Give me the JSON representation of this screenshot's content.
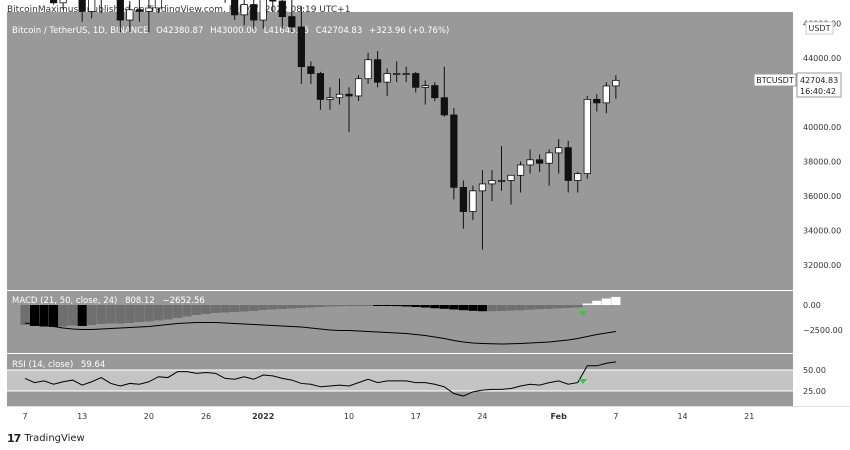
{
  "header": {
    "text": "BitcoinMaximus1 published on TradingView.com, Feb 07, 2022 08:19 UTC+1"
  },
  "footer": {
    "logo": "17",
    "brand": "TradingView"
  },
  "legend": {
    "symbol": "Bitcoin / TetherUS, 1D, BINANCE",
    "o_label": "O",
    "o_value": "42380.87",
    "h_label": "H",
    "h_value": "43000.00",
    "l_label": "L",
    "l_value": "41645.85",
    "c_label": "C",
    "c_value": "42704.83",
    "change": "+323.96 (+0.76%)"
  },
  "price_axis": {
    "currency": "USDT",
    "ticks": [
      "46000.00",
      "44000.00",
      "42000.00",
      "40000.00",
      "38000.00",
      "36000.00",
      "34000.00",
      "32000.00"
    ],
    "last_label": "BTCUSDT",
    "last_price": "42704.83",
    "countdown": "16:40:42"
  },
  "macd": {
    "label": "MACD (21, 50, close, 24)",
    "value1": "808.12",
    "value2": "−2652.56",
    "ticks": [
      "0.00",
      "−2500.00"
    ]
  },
  "rsi": {
    "label": "RSI (14, close)",
    "value": "59.64",
    "ticks": [
      "50.00",
      "25.00"
    ]
  },
  "x_axis": {
    "labels": [
      "7",
      "13",
      "20",
      "26",
      "2022",
      "10",
      "17",
      "24",
      "Feb",
      "7",
      "14",
      "21"
    ]
  },
  "colors": {
    "pane_bg": "#999999",
    "candle_up": "#ffffff",
    "candle_down": "#111111",
    "macd_line": "#000000",
    "rsi_band": "#c4c4c4",
    "arrow_green": "#2ecc40",
    "axis_text": "#333333"
  },
  "chart_data": [
    {
      "type": "candlestick",
      "title": "Bitcoin / TetherUS, 1D, BINANCE",
      "xlabel": "",
      "ylabel": "",
      "ylim": [
        31000,
        46600
      ],
      "x": [
        "2021-12-07",
        "2021-12-08",
        "2021-12-09",
        "2021-12-10",
        "2021-12-11",
        "2021-12-12",
        "2021-12-13",
        "2021-12-14",
        "2021-12-15",
        "2021-12-16",
        "2021-12-17",
        "2021-12-18",
        "2021-12-19",
        "2021-12-20",
        "2021-12-21",
        "2021-12-22",
        "2021-12-23",
        "2021-12-24",
        "2021-12-25",
        "2021-12-26",
        "2021-12-27",
        "2021-12-28",
        "2021-12-29",
        "2021-12-30",
        "2021-12-31",
        "2022-01-01",
        "2022-01-02",
        "2022-01-03",
        "2022-01-04",
        "2022-01-05",
        "2022-01-06",
        "2022-01-07",
        "2022-01-08",
        "2022-01-09",
        "2022-01-10",
        "2022-01-11",
        "2022-01-12",
        "2022-01-13",
        "2022-01-14",
        "2022-01-15",
        "2022-01-16",
        "2022-01-17",
        "2022-01-18",
        "2022-01-19",
        "2022-01-20",
        "2022-01-21",
        "2022-01-22",
        "2022-01-23",
        "2022-01-24",
        "2022-01-25",
        "2022-01-26",
        "2022-01-27",
        "2022-01-28",
        "2022-01-29",
        "2022-01-30",
        "2022-01-31",
        "2022-02-01",
        "2022-02-02",
        "2022-02-03",
        "2022-02-04",
        "2022-02-05",
        "2022-02-06",
        "2022-02-07"
      ],
      "open": [
        50600,
        50500,
        50600,
        49300,
        47200,
        48400,
        49400,
        46700,
        48400,
        49000,
        47600,
        46200,
        46800,
        46700,
        46900,
        48900,
        48600,
        50800,
        50800,
        50400,
        50700,
        50700,
        47600,
        46500,
        47100,
        46200,
        47700,
        47300,
        46400,
        45800,
        43500,
        43100,
        41600,
        41700,
        41900,
        41800,
        42800,
        43900,
        42600,
        43100,
        43100,
        43100,
        42300,
        42400,
        41700,
        40700,
        36500,
        35100,
        36300,
        36700,
        36900,
        36900,
        37200,
        37800,
        38100,
        37900,
        38500,
        38800,
        36900,
        37300,
        41600,
        41400,
        42380
      ],
      "high": [
        51900,
        51200,
        50900,
        50100,
        49500,
        50300,
        50200,
        49100,
        49500,
        49400,
        48000,
        47300,
        48300,
        47600,
        49300,
        49500,
        51400,
        51900,
        51200,
        51300,
        52100,
        50800,
        48200,
        47900,
        48500,
        47900,
        48100,
        47500,
        47500,
        47000,
        43800,
        43200,
        42300,
        42800,
        42300,
        43000,
        44300,
        44400,
        43400,
        43800,
        43500,
        43200,
        42700,
        42600,
        43500,
        41100,
        36900,
        36600,
        37500,
        37500,
        38900,
        37200,
        38000,
        38700,
        38400,
        38700,
        39300,
        39200,
        37400,
        41800,
        41900,
        42600,
        43000
      ],
      "low": [
        50000,
        50000,
        49000,
        47100,
        46800,
        47800,
        46100,
        46300,
        46600,
        47500,
        45500,
        45500,
        46100,
        45500,
        46600,
        48400,
        48100,
        50400,
        50100,
        49900,
        50400,
        47200,
        46200,
        45900,
        45700,
        45700,
        46700,
        45700,
        45500,
        42500,
        42500,
        41000,
        41000,
        41300,
        39700,
        41500,
        42500,
        42300,
        41800,
        42600,
        42600,
        42000,
        41300,
        41500,
        40600,
        35800,
        34100,
        34600,
        32900,
        35700,
        36300,
        35500,
        36200,
        37300,
        37400,
        36600,
        37300,
        36200,
        36200,
        37000,
        40900,
        40800,
        41645
      ],
      "close": [
        50500,
        50600,
        49300,
        47200,
        48400,
        49400,
        46700,
        48400,
        49000,
        47600,
        46200,
        46800,
        46700,
        46900,
        48900,
        48600,
        50800,
        50800,
        50400,
        50700,
        50700,
        47600,
        46500,
        47100,
        46200,
        47700,
        47300,
        46400,
        45800,
        43500,
        43100,
        41600,
        41700,
        41900,
        41800,
        42800,
        43900,
        42600,
        43100,
        43100,
        43100,
        42300,
        42400,
        41700,
        40700,
        36500,
        35100,
        36300,
        36700,
        36900,
        36900,
        37200,
        37800,
        38100,
        37900,
        38500,
        38800,
        36900,
        37300,
        41600,
        41400,
        42380,
        42704
      ]
    },
    {
      "type": "bar",
      "title": "MACD (21, 50, close, 24)",
      "xlabel": "",
      "ylabel": "",
      "ylim": [
        -4200,
        1600
      ],
      "x": [
        "2021-12-07",
        "2021-12-08",
        "2021-12-09",
        "2021-12-10",
        "2021-12-11",
        "2021-12-12",
        "2021-12-13",
        "2021-12-14",
        "2021-12-15",
        "2021-12-16",
        "2021-12-17",
        "2021-12-18",
        "2021-12-19",
        "2021-12-20",
        "2021-12-21",
        "2021-12-22",
        "2021-12-23",
        "2021-12-24",
        "2021-12-25",
        "2021-12-26",
        "2021-12-27",
        "2021-12-28",
        "2021-12-29",
        "2021-12-30",
        "2021-12-31",
        "2022-01-01",
        "2022-01-02",
        "2022-01-03",
        "2022-01-04",
        "2022-01-05",
        "2022-01-06",
        "2022-01-07",
        "2022-01-08",
        "2022-01-09",
        "2022-01-10",
        "2022-01-11",
        "2022-01-12",
        "2022-01-13",
        "2022-01-14",
        "2022-01-15",
        "2022-01-16",
        "2022-01-17",
        "2022-01-18",
        "2022-01-19",
        "2022-01-20",
        "2022-01-21",
        "2022-01-22",
        "2022-01-23",
        "2022-01-24",
        "2022-01-25",
        "2022-01-26",
        "2022-01-27",
        "2022-01-28",
        "2022-01-29",
        "2022-01-30",
        "2022-01-31",
        "2022-02-01",
        "2022-02-02",
        "2022-02-03",
        "2022-02-04",
        "2022-02-05",
        "2022-02-06",
        "2022-02-07"
      ],
      "series": [
        {
          "values": [
            -2000,
            -2100,
            -2150,
            -2200,
            -2150,
            -2050,
            -2100,
            -2000,
            -1900,
            -1850,
            -1850,
            -1800,
            -1700,
            -1650,
            -1550,
            -1450,
            -1300,
            -1150,
            -1000,
            -900,
            -800,
            -750,
            -700,
            -650,
            -600,
            -500,
            -450,
            -400,
            -350,
            -300,
            -250,
            -200,
            -150,
            -120,
            -100,
            -80,
            -60,
            -70,
            -90,
            -110,
            -150,
            -200,
            -250,
            -320,
            -380,
            -450,
            -520,
            -580,
            -620,
            -620,
            -600,
            -560,
            -520,
            -470,
            -420,
            -380,
            -330,
            -300,
            -240,
            150,
            420,
            650,
            808
          ]
        },
        {
          "values": [
            -1800,
            -1900,
            -2000,
            -2150,
            -2300,
            -2400,
            -2450,
            -2450,
            -2400,
            -2350,
            -2300,
            -2250,
            -2200,
            -2150,
            -2050,
            -1950,
            -1850,
            -1800,
            -1750,
            -1750,
            -1750,
            -1800,
            -1850,
            -1900,
            -1950,
            -2000,
            -2050,
            -2100,
            -2150,
            -2200,
            -2300,
            -2400,
            -2500,
            -2550,
            -2550,
            -2600,
            -2650,
            -2700,
            -2750,
            -2800,
            -2850,
            -2950,
            -3050,
            -3200,
            -3350,
            -3550,
            -3700,
            -3800,
            -3850,
            -3880,
            -3900,
            -3880,
            -3850,
            -3800,
            -3750,
            -3700,
            -3600,
            -3500,
            -3350,
            -3150,
            -2950,
            -2800,
            -2652
          ]
        }
      ]
    },
    {
      "type": "line",
      "title": "RSI (14, close)",
      "xlabel": "",
      "ylabel": "",
      "ylim": [
        15,
        78
      ],
      "x": [
        "2021-12-07",
        "2021-12-08",
        "2021-12-09",
        "2021-12-10",
        "2021-12-11",
        "2021-12-12",
        "2021-12-13",
        "2021-12-14",
        "2021-12-15",
        "2021-12-16",
        "2021-12-17",
        "2021-12-18",
        "2021-12-19",
        "2021-12-20",
        "2021-12-21",
        "2021-12-22",
        "2021-12-23",
        "2021-12-24",
        "2021-12-25",
        "2021-12-26",
        "2021-12-27",
        "2021-12-28",
        "2021-12-29",
        "2021-12-30",
        "2021-12-31",
        "2022-01-01",
        "2022-01-02",
        "2022-01-03",
        "2022-01-04",
        "2022-01-05",
        "2022-01-06",
        "2022-01-07",
        "2022-01-08",
        "2022-01-09",
        "2022-01-10",
        "2022-01-11",
        "2022-01-12",
        "2022-01-13",
        "2022-01-14",
        "2022-01-15",
        "2022-01-16",
        "2022-01-17",
        "2022-01-18",
        "2022-01-19",
        "2022-01-20",
        "2022-01-21",
        "2022-01-22",
        "2022-01-23",
        "2022-01-24",
        "2022-01-25",
        "2022-01-26",
        "2022-01-27",
        "2022-01-28",
        "2022-01-29",
        "2022-01-30",
        "2022-01-31",
        "2022-02-01",
        "2022-02-02",
        "2022-02-03",
        "2022-02-04",
        "2022-02-05",
        "2022-02-06",
        "2022-02-07"
      ],
      "series": [
        {
          "values": [
            40,
            35,
            37,
            33,
            36,
            38,
            32,
            36,
            41,
            34,
            31,
            34,
            33,
            36,
            42,
            41,
            48,
            48,
            46,
            47,
            46,
            40,
            39,
            42,
            39,
            44,
            43,
            40,
            38,
            34,
            33,
            30,
            31,
            32,
            31,
            35,
            39,
            35,
            37,
            37,
            37,
            35,
            35,
            33,
            30,
            22,
            19,
            24,
            26,
            27,
            27,
            28,
            31,
            33,
            32,
            35,
            37,
            33,
            35,
            55,
            55,
            58,
            59.64
          ]
        }
      ],
      "reference_lines": [
        50,
        25
      ]
    }
  ]
}
